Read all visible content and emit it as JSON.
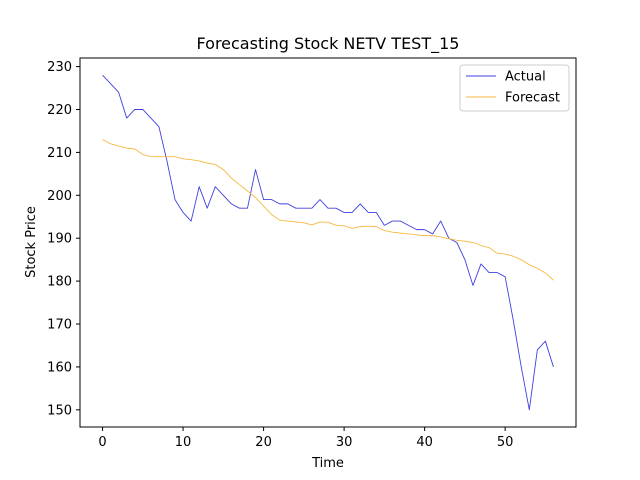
{
  "chart_data": {
    "type": "line",
    "title": "Forecasting Stock NETV TEST_15",
    "xlabel": "Time",
    "ylabel": "Stock Price",
    "xlim": [
      -2.8,
      58.8
    ],
    "ylim": [
      146,
      232
    ],
    "xticks": [
      0,
      10,
      20,
      30,
      40,
      50
    ],
    "yticks": [
      150,
      160,
      170,
      180,
      190,
      200,
      210,
      220,
      230
    ],
    "grid": false,
    "legend_position": "top-right",
    "series": [
      {
        "name": "Actual",
        "color": "#4040e0",
        "values": [
          228,
          226,
          224,
          218,
          220,
          220,
          218,
          216,
          208,
          199,
          196,
          194,
          202,
          197,
          202,
          200,
          198,
          197,
          197,
          206,
          199,
          199,
          198,
          198,
          197,
          197,
          197,
          199,
          197,
          197,
          196,
          196,
          198,
          196,
          196,
          193,
          194,
          194,
          193,
          192,
          192,
          191,
          194,
          190,
          189,
          185,
          179,
          184,
          182,
          182,
          181,
          171,
          160,
          150,
          164,
          166,
          160
        ]
      },
      {
        "name": "Forecast",
        "color": "#f5b942",
        "values": [
          213,
          212,
          211.5,
          211,
          210.8,
          209.5,
          209,
          209,
          209,
          209,
          208.5,
          208.3,
          208,
          207.5,
          207.2,
          206,
          204,
          202.5,
          201,
          199.5,
          197.5,
          195.5,
          194.2,
          194,
          193.8,
          193.6,
          193.1,
          193.8,
          193.7,
          193,
          192.9,
          192.3,
          192.7,
          192.8,
          192.7,
          191.8,
          191.4,
          191.2,
          191,
          190.8,
          190.6,
          190.6,
          190.3,
          189.9,
          189.5,
          189.3,
          189,
          188.3,
          187.8,
          186.5,
          186.3,
          185.8,
          185,
          183.8,
          183,
          181.9,
          180.2
        ]
      }
    ]
  }
}
